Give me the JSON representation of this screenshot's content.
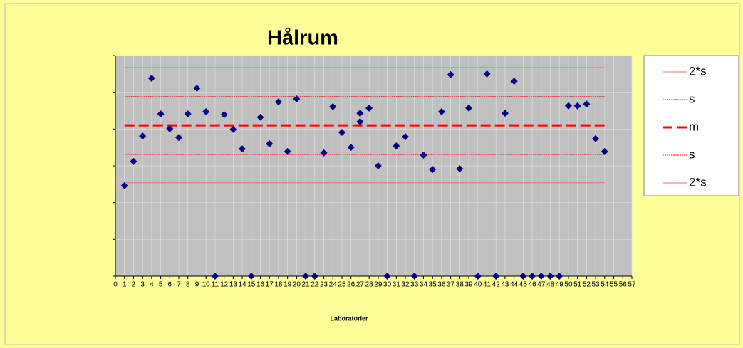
{
  "chart_data": {
    "type": "scatter",
    "title": "Hålrum",
    "xlabel": "Laboratorier",
    "xlim": [
      0,
      57
    ],
    "xticks": [
      0,
      1,
      2,
      3,
      4,
      5,
      6,
      7,
      8,
      9,
      10,
      11,
      12,
      13,
      14,
      15,
      16,
      17,
      18,
      19,
      20,
      21,
      22,
      23,
      24,
      25,
      26,
      27,
      28,
      29,
      30,
      31,
      32,
      33,
      34,
      35,
      36,
      37,
      38,
      39,
      40,
      41,
      42,
      43,
      44,
      45,
      46,
      47,
      48,
      49,
      50,
      51,
      52,
      53,
      54,
      55,
      56,
      57
    ],
    "ylim": [
      0,
      6
    ],
    "yticks": [
      0,
      1,
      2,
      3,
      4,
      5,
      6
    ],
    "grid": true,
    "points": {
      "color": "#000080",
      "x": [
        1,
        2,
        3,
        4,
        5,
        6,
        7,
        8,
        9,
        10,
        11,
        12,
        13,
        14,
        15,
        16,
        17,
        18,
        19,
        20,
        21,
        22,
        23,
        24,
        25,
        26,
        27,
        27,
        28,
        29,
        30,
        31,
        32,
        33,
        34,
        35,
        36,
        37,
        38,
        39,
        40,
        41,
        42,
        43,
        44,
        45,
        46,
        47,
        48,
        49,
        50,
        51,
        52,
        53,
        54
      ],
      "values": [
        2.46,
        3.12,
        3.81,
        5.38,
        4.41,
        4.01,
        3.77,
        4.41,
        5.11,
        4.47,
        0,
        4.39,
        3.99,
        3.46,
        0,
        4.32,
        3.6,
        4.74,
        3.39,
        4.82,
        0,
        0,
        3.35,
        4.61,
        3.91,
        3.5,
        4.43,
        4.2,
        4.57,
        3.0,
        0,
        3.54,
        3.79,
        0,
        3.29,
        2.9,
        4.47,
        5.48,
        2.92,
        4.57,
        0,
        5.5,
        0,
        4.43,
        5.3,
        0,
        0,
        0,
        0,
        0,
        4.63,
        4.63,
        4.68,
        3.74,
        3.39
      ]
    },
    "series": [
      {
        "name": "2*s",
        "color": "#e07070",
        "style": "solid",
        "width": 1,
        "x": [
          1,
          54
        ],
        "values": [
          5.67,
          5.67
        ]
      },
      {
        "name": "s",
        "color": "#ff0000",
        "style": "dotted",
        "width": 1,
        "x": [
          1,
          54
        ],
        "values": [
          4.88,
          4.88
        ]
      },
      {
        "name": "m",
        "color": "#ff0000",
        "style": "dashed",
        "width": 3,
        "x": [
          1,
          54
        ],
        "values": [
          4.1,
          4.1
        ]
      },
      {
        "name": "s",
        "color": "#ff0000",
        "style": "dotted",
        "width": 1,
        "x": [
          1,
          54
        ],
        "values": [
          3.31,
          3.31
        ]
      },
      {
        "name": "2*s",
        "color": "#e07070",
        "style": "solid",
        "width": 1,
        "x": [
          1,
          54
        ],
        "values": [
          2.54,
          2.54
        ]
      }
    ]
  }
}
